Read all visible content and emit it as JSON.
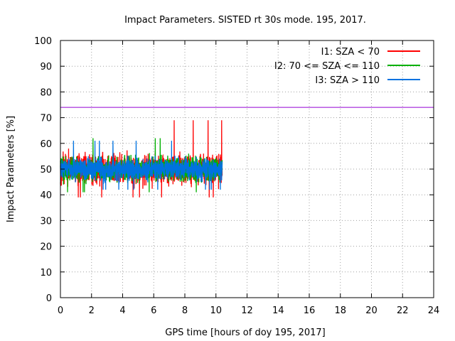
{
  "chart_data": {
    "type": "line",
    "title": "Impact Parameters. SISTED rt 30s mode. 195, 2017.",
    "xlabel": "GPS time [hours of doy 195, 2017]",
    "ylabel": "Impact Parameters [%]",
    "xlim": [
      0,
      24
    ],
    "ylim": [
      0,
      100
    ],
    "xticks": [
      "0",
      "2",
      "4",
      "6",
      "8",
      "10",
      "12",
      "14",
      "16",
      "18",
      "20",
      "22",
      "24"
    ],
    "yticks": [
      "0",
      "10",
      "20",
      "30",
      "40",
      "50",
      "60",
      "70",
      "80",
      "90",
      "100"
    ],
    "grid": true,
    "legend_position": "top-right",
    "x_data_range": [
      0,
      10.4
    ],
    "series": [
      {
        "name": "I1: SZA < 70",
        "color": "#ff0000",
        "mean": 50,
        "min": 39,
        "max": 69
      },
      {
        "name": "I2: 70 <= SZA <= 110",
        "color": "#00b000",
        "mean": 50,
        "min": 41,
        "max": 62
      },
      {
        "name": "I3: SZA > 110",
        "color": "#0072e0",
        "mean": 50,
        "min": 42,
        "max": 61
      }
    ],
    "reference_line": {
      "y": 74,
      "color": "#9400d3"
    }
  }
}
